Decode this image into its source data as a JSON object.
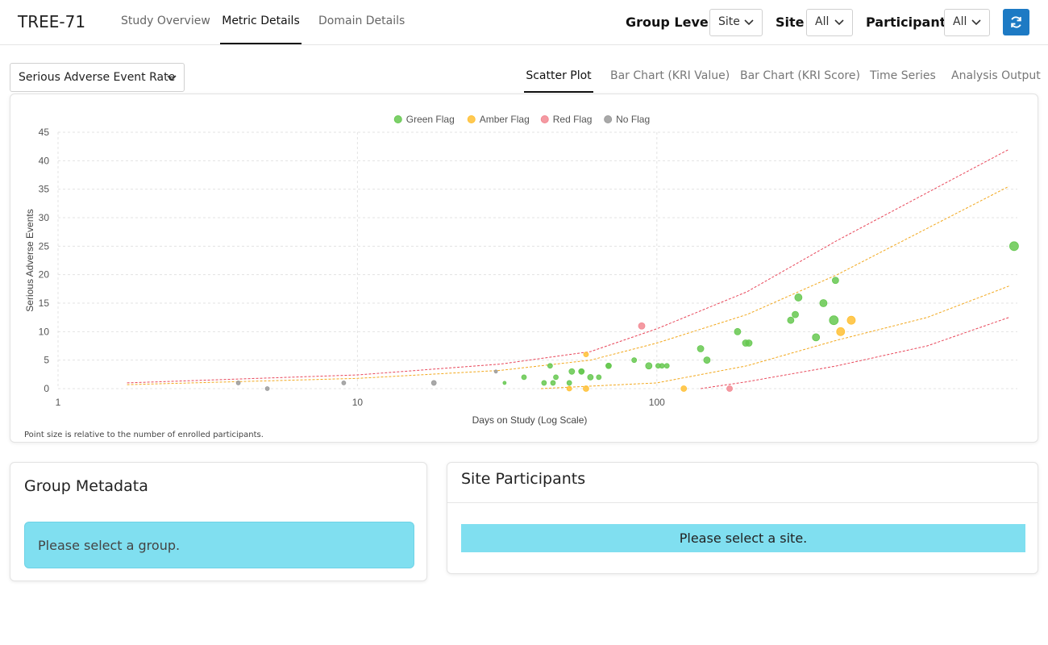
{
  "app": {
    "title": "TREE-71"
  },
  "nav": {
    "tabs": [
      "Study Overview",
      "Metric Details",
      "Domain Details"
    ],
    "active_index": 1
  },
  "filters": {
    "group_level": {
      "label": "Group Level",
      "value": "Site"
    },
    "site": {
      "label": "Site",
      "value": "All"
    },
    "participant": {
      "label": "Participant",
      "value": "All"
    },
    "refresh_icon": "refresh-icon"
  },
  "metric_select": {
    "value": "Serious Adverse Event Rate"
  },
  "chart_tabs": {
    "items": [
      "Scatter Plot",
      "Bar Chart (KRI Value)",
      "Bar Chart (KRI Score)",
      "Time Series",
      "Analysis Output"
    ],
    "active_index": 0
  },
  "chart_note": "Point size is relative to the number of enrolled participants.",
  "colors": {
    "green": "#66c850",
    "amber": "#ffc034",
    "red": "#f28892",
    "gray": "#9a9a9a",
    "accent": "#1d7ac4",
    "alert": "#80dff0"
  },
  "chart_data": {
    "type": "scatter",
    "xlabel": "Days on Study (Log Scale)",
    "ylabel": "Serious Adverse Events",
    "x_scale": "log",
    "xlim": [
      1,
      1600
    ],
    "ylim": [
      0,
      45
    ],
    "x_ticks": [
      1,
      10,
      100
    ],
    "y_ticks": [
      0,
      5,
      10,
      15,
      20,
      25,
      30,
      35,
      40,
      45
    ],
    "grid": true,
    "legend_position": "top-center",
    "legend": [
      {
        "name": "Green Flag",
        "color": "#66c850"
      },
      {
        "name": "Amber Flag",
        "color": "#ffc034"
      },
      {
        "name": "Red Flag",
        "color": "#f28892"
      },
      {
        "name": "No Flag",
        "color": "#9a9a9a"
      }
    ],
    "series": [
      {
        "name": "Green Flag",
        "color": "#66c850",
        "points": [
          {
            "x": 31,
            "y": 1,
            "r": 2
          },
          {
            "x": 36,
            "y": 2,
            "r": 3
          },
          {
            "x": 42,
            "y": 1,
            "r": 3
          },
          {
            "x": 44,
            "y": 4,
            "r": 3
          },
          {
            "x": 45,
            "y": 1,
            "r": 3
          },
          {
            "x": 46,
            "y": 2,
            "r": 3
          },
          {
            "x": 51,
            "y": 1,
            "r": 3
          },
          {
            "x": 52,
            "y": 3,
            "r": 3.5
          },
          {
            "x": 56,
            "y": 3,
            "r": 3.5
          },
          {
            "x": 56,
            "y": 3,
            "r": 3
          },
          {
            "x": 60,
            "y": 2,
            "r": 3.5
          },
          {
            "x": 64,
            "y": 2,
            "r": 3
          },
          {
            "x": 69,
            "y": 4,
            "r": 3
          },
          {
            "x": 69,
            "y": 4,
            "r": 3.5
          },
          {
            "x": 84,
            "y": 5,
            "r": 3
          },
          {
            "x": 94,
            "y": 4,
            "r": 4
          },
          {
            "x": 101,
            "y": 4,
            "r": 3
          },
          {
            "x": 104,
            "y": 4,
            "r": 3
          },
          {
            "x": 108,
            "y": 4,
            "r": 3
          },
          {
            "x": 140,
            "y": 7,
            "r": 4
          },
          {
            "x": 147,
            "y": 5,
            "r": 4
          },
          {
            "x": 186,
            "y": 10,
            "r": 4
          },
          {
            "x": 198,
            "y": 8,
            "r": 4
          },
          {
            "x": 203,
            "y": 8,
            "r": 4
          },
          {
            "x": 280,
            "y": 12,
            "r": 4
          },
          {
            "x": 290,
            "y": 13,
            "r": 4
          },
          {
            "x": 297,
            "y": 16,
            "r": 4.5
          },
          {
            "x": 340,
            "y": 9,
            "r": 4.5
          },
          {
            "x": 360,
            "y": 15,
            "r": 4.5
          },
          {
            "x": 390,
            "y": 12,
            "r": 5.5
          },
          {
            "x": 395,
            "y": 19,
            "r": 4
          },
          {
            "x": 1560,
            "y": 25,
            "r": 5.5
          }
        ]
      },
      {
        "name": "Amber Flag",
        "color": "#ffc034",
        "points": [
          {
            "x": 51,
            "y": 0,
            "r": 3
          },
          {
            "x": 58,
            "y": 6,
            "r": 3
          },
          {
            "x": 58,
            "y": 0,
            "r": 3.5
          },
          {
            "x": 123,
            "y": 0,
            "r": 3.5
          },
          {
            "x": 411,
            "y": 10,
            "r": 5
          },
          {
            "x": 446,
            "y": 12,
            "r": 5
          }
        ]
      },
      {
        "name": "Red Flag",
        "color": "#f28892",
        "points": [
          {
            "x": 89,
            "y": 11,
            "r": 4
          },
          {
            "x": 175,
            "y": 0,
            "r": 3.5
          }
        ]
      },
      {
        "name": "No Flag",
        "color": "#9a9a9a",
        "points": [
          {
            "x": 4,
            "y": 1,
            "r": 2.5
          },
          {
            "x": 5,
            "y": 0,
            "r": 2.5
          },
          {
            "x": 9,
            "y": 1,
            "r": 2.5
          },
          {
            "x": 18,
            "y": 1,
            "r": 3
          },
          {
            "x": 29,
            "y": 3,
            "r": 2
          }
        ]
      }
    ],
    "threshold_lines": [
      {
        "color": "#e8475a",
        "points": [
          [
            1.7,
            1
          ],
          [
            10,
            2.4
          ],
          [
            30,
            4.3
          ],
          [
            60,
            6.5
          ],
          [
            100,
            10.5
          ],
          [
            200,
            17
          ],
          [
            400,
            26
          ],
          [
            1500,
            42
          ]
        ]
      },
      {
        "color": "#f2a81d",
        "points": [
          [
            1.7,
            0.7
          ],
          [
            10,
            1.8
          ],
          [
            30,
            3.2
          ],
          [
            60,
            5
          ],
          [
            100,
            8
          ],
          [
            200,
            13
          ],
          [
            400,
            20
          ],
          [
            1500,
            35.5
          ]
        ]
      },
      {
        "color": "#f2a81d",
        "points": [
          [
            41,
            0
          ],
          [
            100,
            1
          ],
          [
            200,
            4
          ],
          [
            400,
            8.5
          ],
          [
            800,
            12.5
          ],
          [
            1500,
            18
          ]
        ]
      },
      {
        "color": "#e8475a",
        "points": [
          [
            140,
            0
          ],
          [
            200,
            1.2
          ],
          [
            400,
            4
          ],
          [
            800,
            7.5
          ],
          [
            1500,
            12.5
          ]
        ]
      }
    ]
  },
  "group_metadata": {
    "title": "Group Metadata",
    "message": "Please select a group."
  },
  "site_participants": {
    "title": "Site Participants",
    "message": "Please select a site."
  }
}
